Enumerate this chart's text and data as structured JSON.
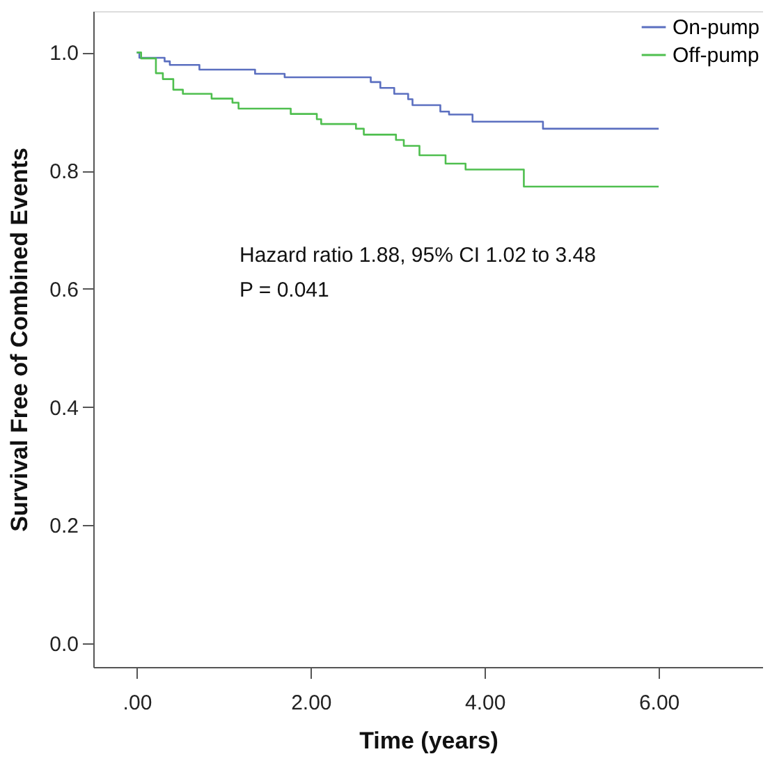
{
  "chart_data": {
    "type": "step",
    "xlabel": "Time (years)",
    "ylabel": "Survival Free of Combined Events",
    "xlim": [
      -0.5,
      7.2
    ],
    "ylim": [
      -0.04,
      1.07
    ],
    "xticks": [
      {
        "value": 0,
        "label": ".00"
      },
      {
        "value": 2,
        "label": "2.00"
      },
      {
        "value": 4,
        "label": "4.00"
      },
      {
        "value": 6,
        "label": "6.00"
      }
    ],
    "yticks": [
      {
        "value": 0,
        "label": "0.0"
      },
      {
        "value": 0.2,
        "label": "0.2"
      },
      {
        "value": 0.4,
        "label": "0.4"
      },
      {
        "value": 0.6,
        "label": "0.6"
      },
      {
        "value": 0.8,
        "label": "0.8"
      },
      {
        "value": 1,
        "label": "1.0"
      }
    ],
    "grid": false,
    "legend": "top right",
    "marker": "none",
    "line_style": "solid",
    "annotations": [
      "Hazard ratio 1.88, 95% CI 1.02 to 3.48",
      "P = 0.041"
    ],
    "series": [
      {
        "name": "On-pump",
        "color": "#5b6fc0",
        "x": [
          0,
          0.03,
          0.32,
          0.38,
          0.72,
          1.36,
          1.7,
          2.69,
          2.8,
          2.96,
          3.12,
          3.17,
          3.49,
          3.59,
          3.86,
          4.67,
          6.0
        ],
        "values": [
          1.0,
          0.991,
          0.985,
          0.979,
          0.971,
          0.964,
          0.958,
          0.95,
          0.94,
          0.93,
          0.921,
          0.911,
          0.9,
          0.895,
          0.883,
          0.871,
          0.871
        ]
      },
      {
        "name": "Off-pump",
        "color": "#4fbf4f",
        "x": [
          0,
          0.05,
          0.22,
          0.3,
          0.42,
          0.53,
          0.86,
          1.1,
          1.17,
          1.77,
          2.07,
          2.12,
          2.52,
          2.61,
          2.98,
          3.07,
          3.25,
          3.55,
          3.78,
          4.45,
          6.0
        ],
        "values": [
          1.0,
          0.99,
          0.965,
          0.955,
          0.937,
          0.93,
          0.922,
          0.915,
          0.905,
          0.896,
          0.887,
          0.879,
          0.871,
          0.861,
          0.852,
          0.842,
          0.826,
          0.812,
          0.802,
          0.773,
          0.773
        ]
      }
    ]
  }
}
